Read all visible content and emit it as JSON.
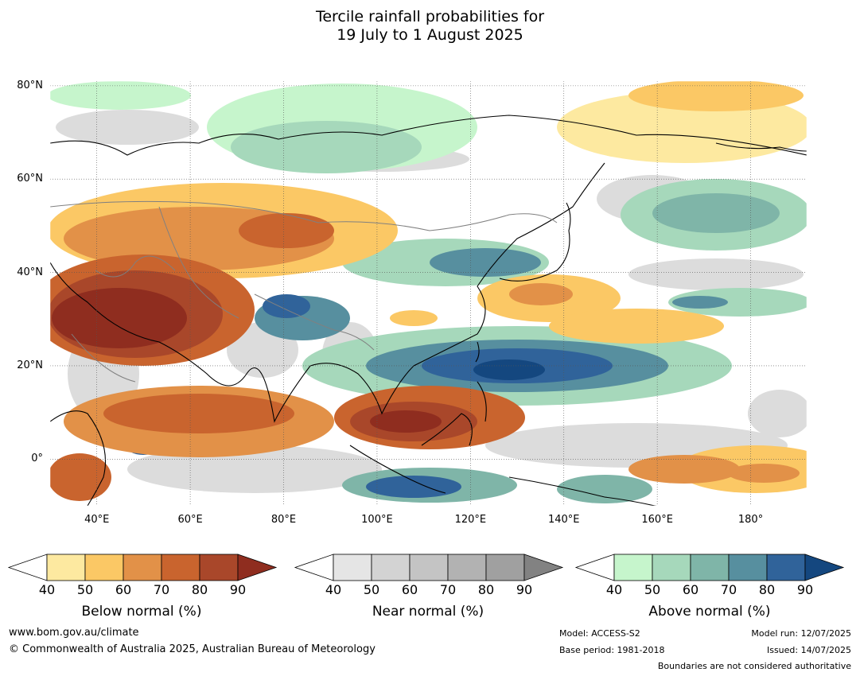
{
  "title_line1": "Tercile rainfall probabilities for",
  "title_line2": "19 July to 1 August 2025",
  "map": {
    "lon_range": [
      30,
      192
    ],
    "lat_range": [
      -10,
      81
    ],
    "lat_ticks": [
      {
        "value": 80,
        "label": "80°N"
      },
      {
        "value": 60,
        "label": "60°N"
      },
      {
        "value": 40,
        "label": "40°N"
      },
      {
        "value": 20,
        "label": "20°N"
      },
      {
        "value": 0,
        "label": "0°"
      }
    ],
    "lon_ticks": [
      {
        "value": 40,
        "label": "40°E"
      },
      {
        "value": 60,
        "label": "60°E"
      },
      {
        "value": 80,
        "label": "80°E"
      },
      {
        "value": 100,
        "label": "100°E"
      },
      {
        "value": 120,
        "label": "120°E"
      },
      {
        "value": 140,
        "label": "140°E"
      },
      {
        "value": 160,
        "label": "160°E"
      },
      {
        "value": 180,
        "label": "180°"
      }
    ]
  },
  "colorbars": [
    {
      "title": "Below normal (%)",
      "ticks": [
        "40",
        "50",
        "60",
        "70",
        "80",
        "90"
      ],
      "colors": [
        "#fde9a0",
        "#fbc865",
        "#e29148",
        "#c9642e",
        "#a9472a",
        "#8f2d1f"
      ]
    },
    {
      "title": "Near normal (%)",
      "ticks": [
        "40",
        "50",
        "60",
        "70",
        "80",
        "90"
      ],
      "colors": [
        "#e5e5e5",
        "#d3d3d3",
        "#c4c4c4",
        "#b2b2b2",
        "#a0a0a0",
        "#828282"
      ]
    },
    {
      "title": "Above normal (%)",
      "ticks": [
        "40",
        "50",
        "60",
        "70",
        "80",
        "90"
      ],
      "colors": [
        "#c6f5cc",
        "#a6d8bb",
        "#7fb5a8",
        "#578f9f",
        "#30639a",
        "#14477f"
      ]
    }
  ],
  "footer": {
    "website": "www.bom.gov.au/climate",
    "copyright": "© Commonwealth of Australia 2025, Australian Bureau of Meteorology",
    "model": "Model: ACCESS-S2",
    "base_period": "Base period: 1981-2018",
    "model_run": "Model run: 12/07/2025",
    "issued": "Issued: 14/07/2025",
    "disclaimer": "Boundaries are not considered authoritative"
  }
}
